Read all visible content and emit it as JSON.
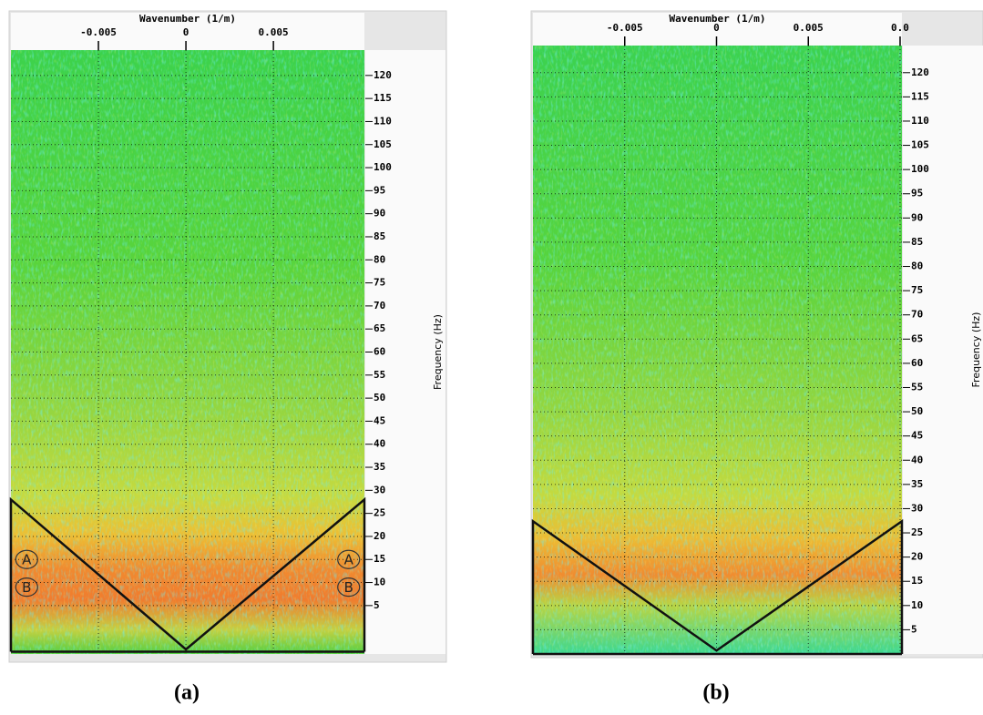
{
  "chart_data": [
    {
      "type": "fk-spectrum",
      "x_label": "Wavenumber (1/m)",
      "y_label": "Frequency (Hz)",
      "caption": "(a)",
      "xlim": [
        -0.01,
        0.0102
      ],
      "ylim": [
        -5.5,
        125.5
      ],
      "xticks": [
        -0.005,
        0,
        0.005
      ],
      "yticks": [
        5,
        10,
        15,
        20,
        25,
        30,
        35,
        40,
        45,
        50,
        55,
        60,
        65,
        70,
        75,
        80,
        85,
        90,
        95,
        100,
        105,
        110,
        115,
        120
      ],
      "grid": true,
      "polygon_x": [
        -0.01,
        -0.01,
        0,
        0.0102,
        0.0102
      ],
      "polygon_y": [
        -5,
        28,
        -4.5,
        28,
        -5
      ],
      "annotations": [
        {
          "text": "A",
          "x": -0.0091,
          "y": 15
        },
        {
          "text": "B",
          "x": -0.0091,
          "y": 9
        },
        {
          "text": "A",
          "x": 0.0093,
          "y": 15
        },
        {
          "text": "B",
          "x": 0.0093,
          "y": 9
        }
      ]
    },
    {
      "type": "fk-spectrum",
      "x_label": "Wavenumber (1/m)",
      "y_label": "Frequency (Hz)",
      "caption": "(b)",
      "xlim": [
        -0.01,
        0.0101
      ],
      "ylim": [
        0,
        125.6
      ],
      "xticks": [
        -0.005,
        0,
        0.005,
        {
          "value": 0.01,
          "label": "0.0"
        }
      ],
      "yticks": [
        5,
        10,
        15,
        20,
        25,
        30,
        35,
        40,
        45,
        50,
        55,
        60,
        65,
        70,
        75,
        80,
        85,
        90,
        95,
        100,
        105,
        110,
        115,
        120
      ],
      "grid": true,
      "polygon_x": [
        -0.01,
        -0.01,
        0,
        0.0101,
        0.0101
      ],
      "polygon_y": [
        0,
        27.4,
        0.7,
        27.4,
        0
      ]
    }
  ]
}
